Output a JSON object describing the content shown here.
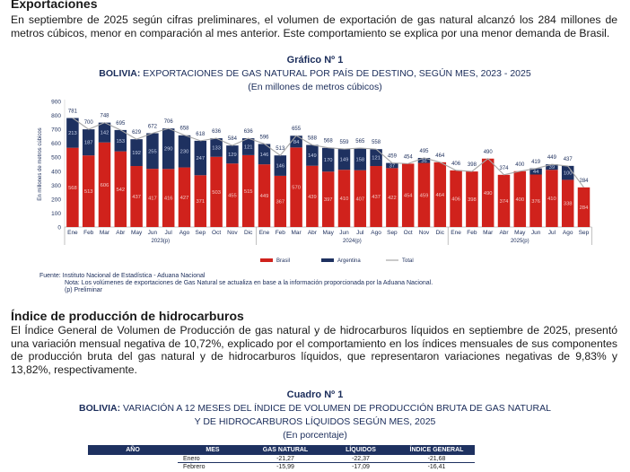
{
  "section1": {
    "heading": "Exportaciones",
    "paragraph": "En septiembre de 2025 según cifras preliminares, el volumen de exportación de gas natural alcanzó los 284 millones de metros cúbicos, menor en comparación al mes anterior. Este comportamiento se explica por una menor demanda de Brasil."
  },
  "chart_label": "Gráfico Nº 1",
  "chart_title_bold": "BOLIVIA:",
  "chart_title_rest": " EXPORTACIONES DE GAS NATURAL POR PAÍS DE DESTINO, SEGÚN MES, 2023 - 2025",
  "chart_subtitle": "(En millones de metros cúbicos)",
  "chart_data": {
    "type": "bar",
    "stacked": true,
    "ylabel": "En millones de metros cúbicos",
    "ylim": [
      0,
      900
    ],
    "yticks": [
      0,
      100,
      200,
      300,
      400,
      500,
      600,
      700,
      800,
      900
    ],
    "months": [
      "Ene",
      "Feb",
      "Mar",
      "Abr",
      "May",
      "Jun",
      "Jul",
      "Ago",
      "Sep",
      "Oct",
      "Nov",
      "Dic",
      "Ene",
      "Feb",
      "Mar",
      "Abr",
      "May",
      "Jun",
      "Jul",
      "Ago",
      "Sep",
      "Oct",
      "Nov",
      "Dic",
      "Ene",
      "Feb",
      "Mar",
      "Abr",
      "May",
      "Jun",
      "Jul",
      "Ago",
      "Sep"
    ],
    "years": [
      {
        "label": "2023(p)",
        "count": 12
      },
      {
        "label": "2024(p)",
        "count": 12
      },
      {
        "label": "2025(p)",
        "count": 9
      }
    ],
    "series": [
      {
        "name": "Brasil",
        "color": "#d0221c",
        "values": [
          568,
          513,
          606,
          542,
          437,
          417,
          416,
          427,
          371,
          503,
          455,
          515,
          449,
          367,
          570,
          439,
          397,
          410,
          407,
          437,
          422,
          454,
          459,
          464,
          406,
          398,
          490,
          374,
          400,
          376,
          410,
          338,
          284
        ]
      },
      {
        "name": "Argentina",
        "color": "#1e3160",
        "values": [
          213,
          187,
          142,
          153,
          192,
          255,
          290,
          230,
          247,
          133,
          129,
          121,
          146,
          146,
          84,
          149,
          170,
          149,
          158,
          121,
          37,
          0,
          36,
          0,
          0,
          0,
          0,
          0,
          0,
          44,
          39,
          100,
          0
        ]
      },
      {
        "name": "Total",
        "color": "#a6a6a6",
        "type": "line",
        "values": [
          781,
          700,
          748,
          695,
          629,
          672,
          706,
          658,
          618,
          636,
          584,
          636,
          596,
          513,
          655,
          588,
          568,
          559,
          565,
          558,
          459,
          454,
          495,
          464,
          406,
          398,
          490,
          374,
          400,
          419,
          449,
          437,
          284
        ]
      }
    ],
    "legend": "bottom"
  },
  "footnotes": {
    "source": "Fuente: Instituto Nacional de Estadística - Aduana Nacional",
    "note": "Nota:  Los volúmenes de exportaciones de Gas Natural se actualiza en base a la información proporcionada por la Aduana Nacional.",
    "prelim": "(p) Preliminar"
  },
  "section2": {
    "heading": "Índice de producción de hidrocarburos",
    "paragraph": "El Índice General de Volumen de Producción de gas natural y de hidrocarburos líquidos en septiembre de 2025, presentó una variación mensual negativa de 10,72%, explicado por el comportamiento en los índices mensuales de sus componentes de producción bruta del gas natural y de hidrocarburos líquidos, que representaron variaciones negativas de 9,83% y 13,82%, respectivamente."
  },
  "table_label": "Cuadro Nº 1",
  "table_title_bold": "BOLIVIA:",
  "table_title_rest1": " VARIACIÓN A 12 MESES DEL ÍNDICE DE VOLUMEN DE PRODUCCIÓN BRUTA DE GAS NATURAL",
  "table_title_line2": "Y DE HIDROCARBUROS LÍQUIDOS SEGÚN MES, 2025",
  "table_subtitle": "(En porcentaje)",
  "table": {
    "headers": [
      "AÑO",
      "MES",
      "GAS NATURAL",
      "LÍQUIDOS",
      "ÍNDICE GENERAL"
    ],
    "rows": [
      [
        "",
        "Enero",
        "-21,27",
        "-22,37",
        "-21,68"
      ],
      [
        "",
        "Febrero",
        "-15,99",
        "-17,09",
        "-16,41"
      ]
    ]
  }
}
